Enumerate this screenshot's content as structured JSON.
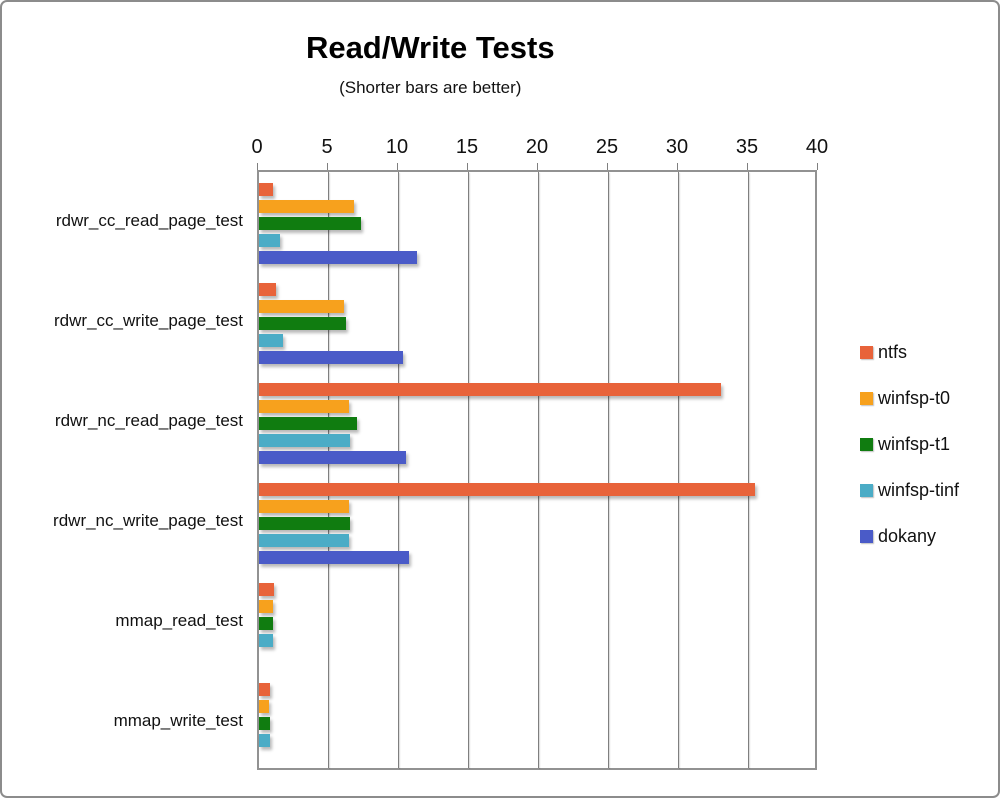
{
  "window": {
    "background": "#ffffff",
    "border_color": "#8c8c8c"
  },
  "chart_data": {
    "type": "bar",
    "orientation": "horizontal",
    "title": "Read/Write Tests",
    "subtitle": "(Shorter bars are better)",
    "categories": [
      "rdwr_cc_read_page_test",
      "rdwr_cc_write_page_test",
      "rdwr_nc_read_page_test",
      "rdwr_nc_write_page_test",
      "mmap_read_test",
      "mmap_write_test"
    ],
    "series": [
      {
        "name": "ntfs",
        "color": "#E8633A",
        "values": [
          1.0,
          1.2,
          33.0,
          35.4,
          1.1,
          0.8
        ]
      },
      {
        "name": "winfsp-t0",
        "color": "#F7A11D",
        "values": [
          6.8,
          6.1,
          6.4,
          6.4,
          1.0,
          0.7
        ]
      },
      {
        "name": "winfsp-t1",
        "color": "#107C10",
        "values": [
          7.3,
          6.2,
          7.0,
          6.5,
          1.0,
          0.8
        ]
      },
      {
        "name": "winfsp-tinf",
        "color": "#4BACC6",
        "values": [
          1.5,
          1.7,
          6.5,
          6.4,
          1.0,
          0.8
        ]
      },
      {
        "name": "dokany",
        "color": "#4A5BC8",
        "values": [
          11.3,
          10.3,
          10.5,
          10.7,
          0,
          0
        ]
      }
    ],
    "x_axis": {
      "min": 0,
      "max": 40,
      "tick_step": 5,
      "tick_labels": [
        "0",
        "5",
        "10",
        "15",
        "20",
        "25",
        "30",
        "35",
        "40"
      ],
      "position": "top"
    },
    "grid": true,
    "legend_position": "right"
  }
}
